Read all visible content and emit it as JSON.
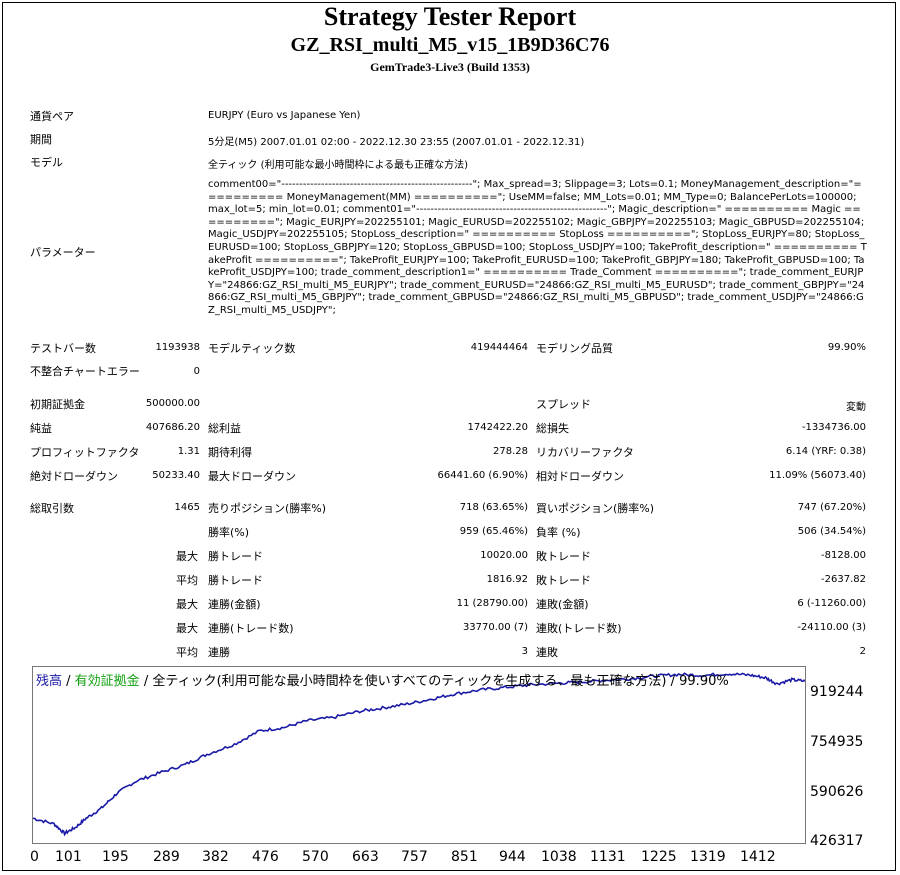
{
  "header": {
    "title": "Strategy Tester Report",
    "ea_name": "GZ_RSI_multi_M5_v15_1B9D36C76",
    "server": "GemTrade3-Live3 (Build 1353)"
  },
  "info": {
    "pair_label": "通貨ペア",
    "pair_value": "EURJPY (Euro vs Japanese Yen)",
    "period_label": "期間",
    "period_value": "5分足(M5) 2007.01.01 02:00 - 2022.12.30 23:55 (2007.01.01 - 2022.12.31)",
    "model_label": "モデル",
    "model_value": "全ティック (利用可能な最小時間枠による最も正確な方法)",
    "params_label": "パラメーター",
    "params_value": "comment00=\"-----------------------------------------------------\"; Max_spread=3; Slippage=3; Lots=0.1; MoneyManagement_description=\"========== MoneyManagement(MM) ==========\"; UseMM=false; MM_Lots=0.01; MM_Type=0; BalancePerLots=100000; max_lot=5; min_lot=0.01; comment01=\"-----------------------------------------------------\"; Magic_description=\" ========== Magic ==========\"; Magic_EURJPY=202255101; Magic_EURUSD=202255102; Magic_GBPJPY=202255103; Magic_GBPUSD=202255104; Magic_USDJPY=202255105; StopLoss_description=\" ========== StopLoss ==========\"; StopLoss_EURJPY=80; StopLoss_EURUSD=100; StopLoss_GBPJPY=120; StopLoss_GBPUSD=100; StopLoss_USDJPY=100; TakeProfit_description=\" ========== TakeProfit ==========\"; TakeProfit_EURJPY=100; TakeProfit_EURUSD=100; TakeProfit_GBPJPY=180; TakeProfit_GBPUSD=100; TakeProfit_USDJPY=100; trade_comment_description1=\" ========== Trade_Comment ==========\"; trade_comment_EURJPY=\"24866:GZ_RSI_multi_M5_EURJPY\"; trade_comment_EURUSD=\"24866:GZ_RSI_multi_M5_EURUSD\"; trade_comment_GBPJPY=\"24866:GZ_RSI_multi_M5_GBPJPY\"; trade_comment_GBPUSD=\"24866:GZ_RSI_multi_M5_GBPUSD\"; trade_comment_USDJPY=\"24866:GZ_RSI_multi_M5_USDJPY\";"
  },
  "stats": {
    "bars_label": "テストバー数",
    "bars_value": "1193938",
    "ticks_label": "モデルティック数",
    "ticks_value": "419444464",
    "quality_label": "モデリング品質",
    "quality_value": "99.90%",
    "mismatch_label": "不整合チャートエラー",
    "mismatch_value": "0",
    "deposit_label": "初期証拠金",
    "deposit_value": "500000.00",
    "spread_label": "スプレッド",
    "spread_value": "変動",
    "net_label": "純益",
    "net_value": "407686.20",
    "gross_profit_label": "総利益",
    "gross_profit_value": "1742422.20",
    "gross_loss_label": "総損失",
    "gross_loss_value": "-1334736.00",
    "pf_label": "プロフィットファクタ",
    "pf_value": "1.31",
    "expected_label": "期待利得",
    "expected_value": "278.28",
    "recovery_label": "リカバリーファクタ",
    "recovery_value": "6.14 (YRF: 0.38)",
    "abs_dd_label": "絶対ドローダウン",
    "abs_dd_value": "50233.40",
    "max_dd_label": "最大ドローダウン",
    "max_dd_value": "66441.60 (6.90%)",
    "rel_dd_label": "相対ドローダウン",
    "rel_dd_value": "11.09% (56073.40)",
    "trades_label": "総取引数",
    "trades_value": "1465",
    "short_label": "売りポジション(勝率%)",
    "short_value": "718 (63.65%)",
    "long_label": "買いポジション(勝率%)",
    "long_value": "747 (67.20%)",
    "win_rate_label": "勝率(%)",
    "win_rate_value": "959 (65.46%)",
    "loss_rate_label": "負率 (%)",
    "loss_rate_value": "506 (34.54%)",
    "max_word": "最大",
    "avg_word": "平均",
    "max_win_label": "勝トレード",
    "max_win_value": "10020.00",
    "max_loss_label": "敗トレード",
    "max_loss_value": "-8128.00",
    "avg_win_label": "勝トレード",
    "avg_win_value": "1816.92",
    "avg_loss_label": "敗トレード",
    "avg_loss_value": "-2637.82",
    "max_cons_win_label": "連勝(金額)",
    "max_cons_win_value": "11 (28790.00)",
    "max_cons_loss_label": "連敗(金額)",
    "max_cons_loss_value": "6 (-11260.00)",
    "max_cons_profit_label": "連勝(トレード数)",
    "max_cons_profit_value": "33770.00 (7)",
    "max_cons_lossamt_label": "連敗(トレード数)",
    "max_cons_lossamt_value": "-24110.00 (3)",
    "avg_cons_win_label": "連勝",
    "avg_cons_win_value": "3",
    "avg_cons_loss_label": "連敗",
    "avg_cons_loss_value": "2"
  },
  "legend": {
    "balance": "残高",
    "sep1": " / ",
    "equity": "有効証拠金",
    "sep2": " / ",
    "rest": "全ティック(利用可能な最小時間枠を使いすべてのティックを生成する、最も正確な方法) / 99.90%"
  },
  "colors": {
    "balance": "#1a1aa6",
    "equity": "#10a010",
    "text": "#000000"
  },
  "chart_data": {
    "type": "line",
    "x_ticks": [
      "0",
      "101",
      "195",
      "289",
      "382",
      "476",
      "570",
      "663",
      "757",
      "851",
      "944",
      "1038",
      "1131",
      "1225",
      "1319",
      "1412"
    ],
    "y_ticks": [
      "919244",
      "754935",
      "590626",
      "426317"
    ],
    "ylim": [
      426317,
      950000
    ],
    "xlim": [
      0,
      1465
    ],
    "series": [
      {
        "name": "残高",
        "x": [
          0,
          40,
          60,
          80,
          101,
          130,
          160,
          195,
          240,
          289,
          330,
          382,
          430,
          476,
          520,
          570,
          620,
          663,
          710,
          757,
          800,
          851,
          900,
          944,
          1000,
          1038,
          1080,
          1131,
          1180,
          1225,
          1270,
          1319,
          1360,
          1390,
          1412,
          1440,
          1465
        ],
        "values": [
          500000,
          483000,
          455000,
          472000,
          500000,
          530000,
          575000,
          610000,
          635000,
          660000,
          690000,
          720000,
          760000,
          770000,
          790000,
          800000,
          818000,
          828000,
          840000,
          855000,
          870000,
          882000,
          890000,
          897000,
          902000,
          905000,
          910000,
          915000,
          923000,
          928000,
          925000,
          930000,
          926000,
          918000,
          900000,
          912000,
          907686
        ]
      }
    ]
  }
}
